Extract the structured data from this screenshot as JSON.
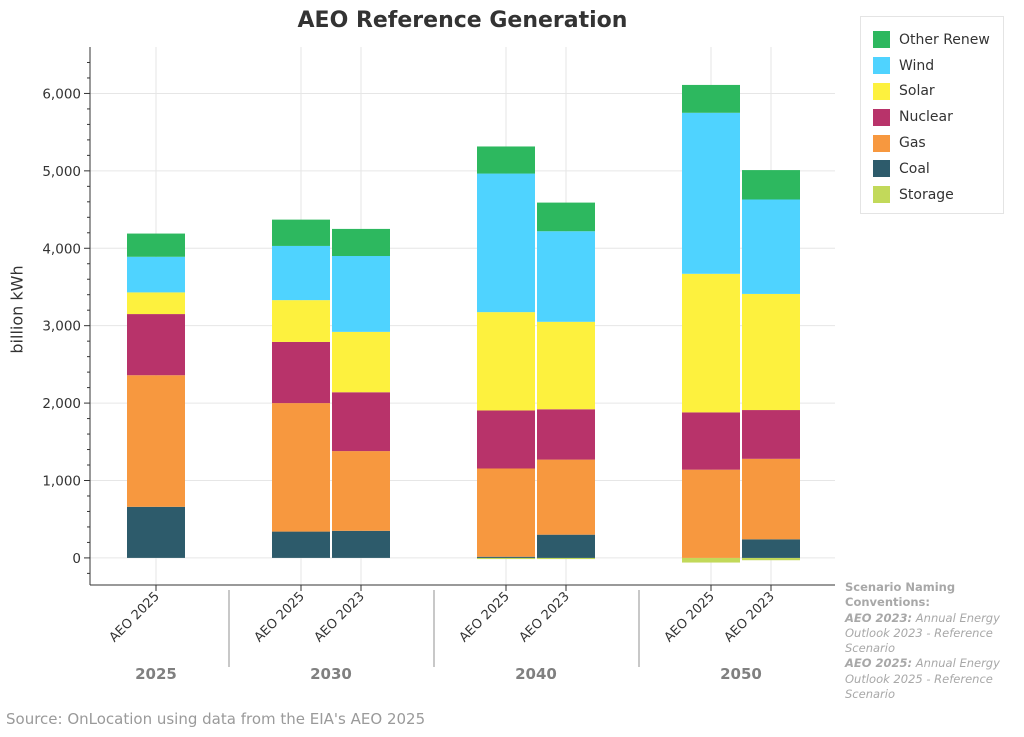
{
  "chart_data": {
    "type": "bar",
    "stacked": true,
    "title": "AEO Reference Generation",
    "ylabel": "billion kWh",
    "ylim": [
      -350,
      6600
    ],
    "yticks": [
      0,
      1000,
      2000,
      3000,
      4000,
      5000,
      6000
    ],
    "ytick_labels": [
      "0",
      "1,000",
      "2,000",
      "3,000",
      "4,000",
      "5,000",
      "6,000"
    ],
    "grid": true,
    "legend_position": "top-right",
    "groups": [
      "2025",
      "2030",
      "2040",
      "2050"
    ],
    "categories": [
      {
        "group": "2025",
        "label": "AEO 2025"
      },
      {
        "group": "2030",
        "label": "AEO 2025"
      },
      {
        "group": "2030",
        "label": "AEO 2023"
      },
      {
        "group": "2040",
        "label": "AEO 2025"
      },
      {
        "group": "2040",
        "label": "AEO 2023"
      },
      {
        "group": "2050",
        "label": "AEO 2025"
      },
      {
        "group": "2050",
        "label": "AEO 2023"
      }
    ],
    "series": [
      {
        "name": "Storage",
        "color": "#c2d95a",
        "values": [
          0,
          0,
          0,
          -15,
          -15,
          -60,
          -30
        ]
      },
      {
        "name": "Coal",
        "color": "#2d5b6b",
        "values": [
          660,
          340,
          350,
          15,
          300,
          0,
          240
        ]
      },
      {
        "name": "Gas",
        "color": "#f7983f",
        "values": [
          1700,
          1660,
          1030,
          1140,
          970,
          1140,
          1040
        ]
      },
      {
        "name": "Nuclear",
        "color": "#b8336a",
        "values": [
          790,
          790,
          760,
          750,
          650,
          740,
          630
        ]
      },
      {
        "name": "Solar",
        "color": "#fdf13e",
        "values": [
          280,
          540,
          780,
          1270,
          1130,
          1790,
          1500
        ]
      },
      {
        "name": "Wind",
        "color": "#4fd3ff",
        "values": [
          460,
          700,
          980,
          1790,
          1170,
          2080,
          1220
        ]
      },
      {
        "name": "Other Renew",
        "color": "#2db85f",
        "values": [
          300,
          340,
          350,
          350,
          370,
          360,
          380
        ]
      }
    ]
  },
  "legend": {
    "items": [
      {
        "label": "Other Renew",
        "color": "#2db85f"
      },
      {
        "label": "Wind",
        "color": "#4fd3ff"
      },
      {
        "label": "Solar",
        "color": "#fdf13e"
      },
      {
        "label": "Nuclear",
        "color": "#b8336a"
      },
      {
        "label": "Gas",
        "color": "#f7983f"
      },
      {
        "label": "Coal",
        "color": "#2d5b6b"
      },
      {
        "label": "Storage",
        "color": "#c2d95a"
      }
    ]
  },
  "source": "Source: OnLocation using data from the EIA's AEO 2025",
  "notes": {
    "heading": "Scenario Naming Conventions:",
    "aeo2023_term": "AEO 2023:",
    "aeo2023_text": " Annual Energy Outlook 2023 - Reference Scenario",
    "aeo2025_term": "AEO 2025:",
    "aeo2025_text": " Annual Energy Outlook 2025 - Reference Scenario"
  }
}
